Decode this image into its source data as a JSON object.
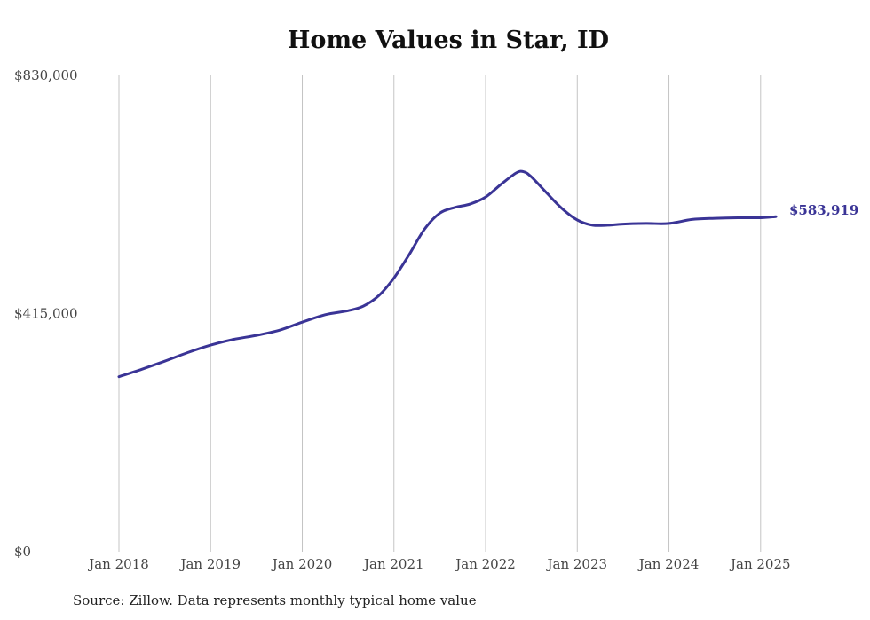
{
  "chart_data": {
    "type": "line",
    "title": "Home Values in Star, ID",
    "source": "Source: Zillow. Data represents monthly typical home value",
    "y_tick_labels": [
      "$0",
      "$415,000",
      "$830,000"
    ],
    "y_tick_values": [
      0,
      415000,
      830000
    ],
    "ylim": [
      0,
      830000
    ],
    "x_tick_labels": [
      "Jan 2018",
      "Jan 2019",
      "Jan 2020",
      "Jan 2021",
      "Jan 2022",
      "Jan 2023",
      "Jan 2024",
      "Jan 2025"
    ],
    "x_tick_values": [
      "2018-01",
      "2019-01",
      "2020-01",
      "2021-01",
      "2022-01",
      "2023-01",
      "2024-01",
      "2025-01"
    ],
    "xlim": [
      "2018-01",
      "2025-03"
    ],
    "grid": "vertical",
    "series_color": "#3a3496",
    "end_label": "$583,919",
    "x": [
      "2018-01",
      "2018-04",
      "2018-07",
      "2018-10",
      "2019-01",
      "2019-04",
      "2019-07",
      "2019-10",
      "2020-01",
      "2020-04",
      "2020-07",
      "2020-09",
      "2020-11",
      "2021-01",
      "2021-03",
      "2021-05",
      "2021-07",
      "2021-09",
      "2021-11",
      "2022-01",
      "2022-03",
      "2022-05",
      "2022-06",
      "2022-07",
      "2022-09",
      "2022-11",
      "2023-01",
      "2023-03",
      "2023-05",
      "2023-07",
      "2023-10",
      "2024-01",
      "2024-04",
      "2024-07",
      "2024-10",
      "2025-01",
      "2025-03"
    ],
    "values": [
      305000,
      318000,
      332000,
      347000,
      360000,
      370000,
      377000,
      386000,
      400000,
      413000,
      420000,
      428000,
      446000,
      477000,
      518000,
      562000,
      590000,
      600000,
      606000,
      618000,
      640000,
      660000,
      662000,
      653000,
      625000,
      598000,
      578000,
      569000,
      569000,
      571000,
      572000,
      572000,
      579000,
      581000,
      582000,
      582000,
      583919
    ]
  }
}
